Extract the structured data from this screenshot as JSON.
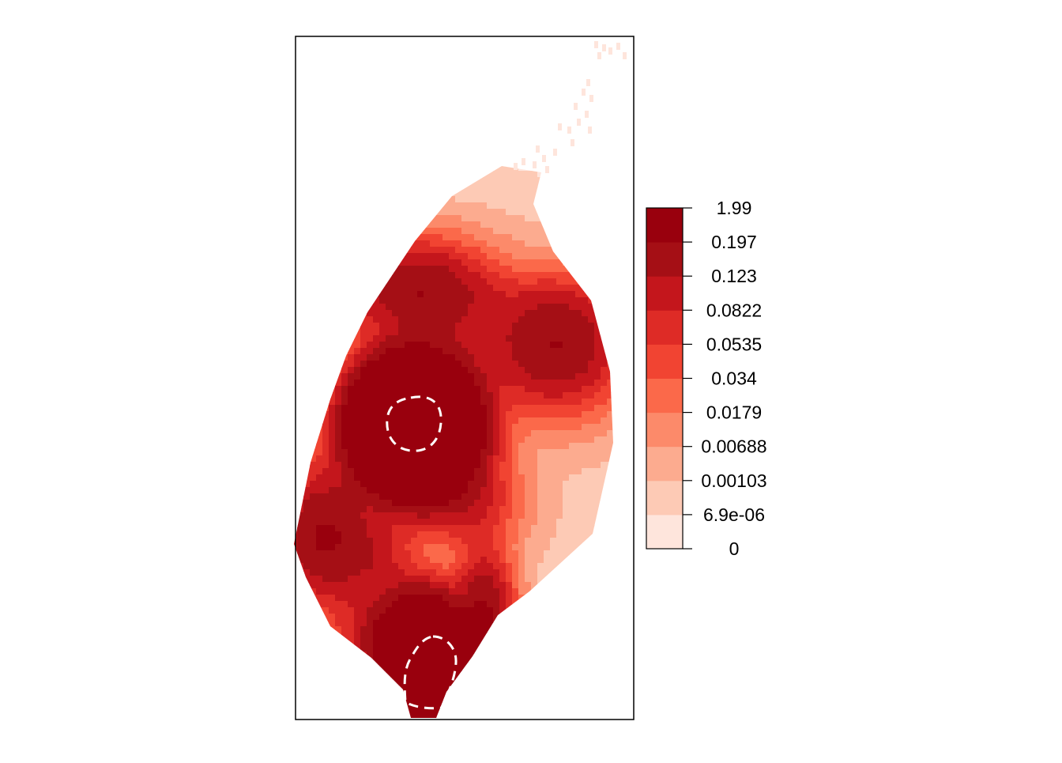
{
  "chart_data": {
    "type": "heatmap",
    "title": "",
    "xlabel": "",
    "ylabel": "",
    "axes_shown": false,
    "legend": {
      "placement": "right",
      "break_labels": [
        "0",
        "6.9e-06",
        "0.00103",
        "0.00688",
        "0.0179",
        "0.034",
        "0.0535",
        "0.0822",
        "0.123",
        "0.197",
        "1.99"
      ],
      "class_colors": [
        "#FEE5DC",
        "#FDCAB5",
        "#FCAB8F",
        "#FC8A6A",
        "#FB694A",
        "#F14432",
        "#DE2B26",
        "#C4161C",
        "#A50F15",
        "#99000D"
      ]
    },
    "hotspots": [
      {
        "x": 0.36,
        "y": 0.64,
        "value": 0.197
      },
      {
        "x": 0.5,
        "y": 0.58,
        "value": 0.034
      },
      {
        "x": 0.77,
        "y": 0.55,
        "value": 0.197
      },
      {
        "x": 0.35,
        "y": 0.43,
        "value": 1.99
      },
      {
        "x": 0.51,
        "y": 0.32,
        "value": 0.0822
      },
      {
        "x": 0.08,
        "y": 0.27,
        "value": 0.197
      },
      {
        "x": 0.23,
        "y": 0.24,
        "value": 0.0822
      },
      {
        "x": 0.29,
        "y": 0.13,
        "value": 0.123
      },
      {
        "x": 0.56,
        "y": 0.15,
        "value": 0.197
      },
      {
        "x": 0.38,
        "y": 0.06,
        "value": 1.99
      }
    ],
    "contour": {
      "style": "dashed",
      "color": "#ffffff",
      "value": 1.99
    }
  }
}
